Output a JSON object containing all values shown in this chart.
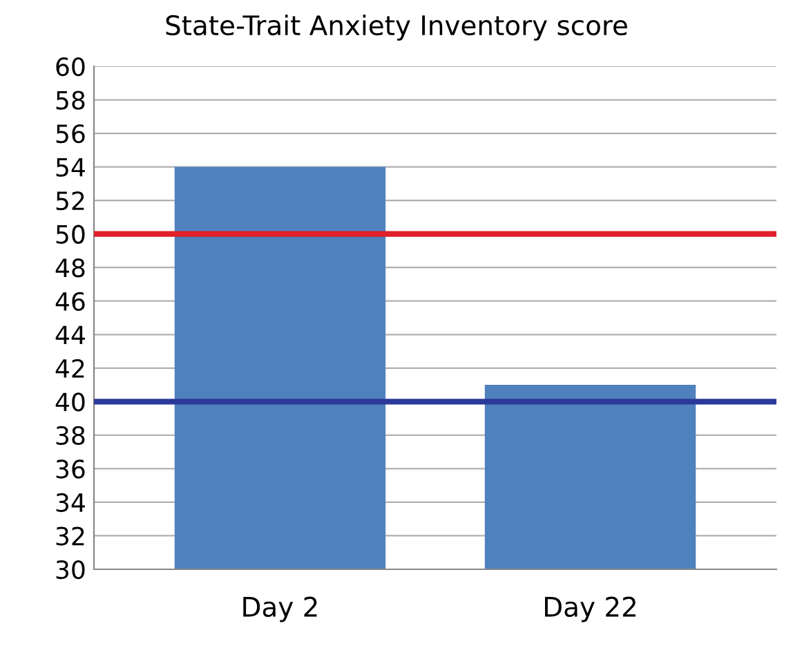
{
  "chart_data": {
    "type": "bar",
    "title": "State-Trait Anxiety Inventory score",
    "categories": [
      "Day 2",
      "Day 22"
    ],
    "values": [
      54,
      41
    ],
    "color": "#4f81bd",
    "ylim": [
      30,
      60
    ],
    "yticks": [
      30,
      32,
      34,
      36,
      38,
      40,
      42,
      44,
      46,
      48,
      50,
      52,
      54,
      56,
      58,
      60
    ],
    "grid": "y",
    "ref_lines": [
      {
        "axis": "y",
        "value": 50,
        "color": "#e0202a"
      },
      {
        "axis": "y",
        "value": 40,
        "color": "#2b3a9a"
      }
    ]
  }
}
